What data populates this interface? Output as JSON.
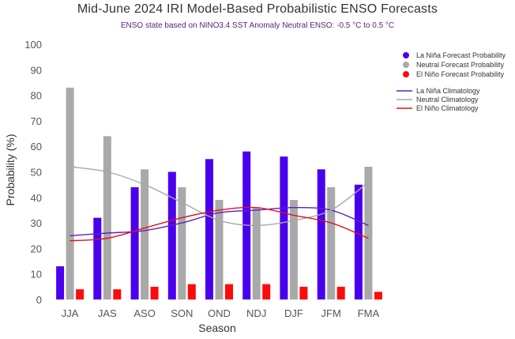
{
  "title": "Mid-June 2024 IRI Model-Based Probabilistic ENSO Forecasts",
  "subtitle": "ENSO state based on NINO3.4 SST Anomaly Neutral ENSO: -0.5 °C to 0.5 °C",
  "colors": {
    "la_nina_bar": "#4a00ee",
    "neutral_bar": "#a9a9a9",
    "el_nino_bar": "#ff0a0a",
    "la_nina_line": "#5d1fc8",
    "neutral_line": "#a9a9a9",
    "el_nino_line": "#dd1616"
  },
  "chart_data": {
    "type": "bar",
    "title": "Mid-June 2024 IRI Model-Based Probabilistic ENSO Forecasts",
    "xlabel": "Season",
    "ylabel": "Probability (%)",
    "ylim": [
      0,
      100
    ],
    "yticks": [
      0,
      10,
      20,
      30,
      40,
      50,
      60,
      70,
      80,
      90,
      100
    ],
    "grid": false,
    "legend_position": "right",
    "categories": [
      "JJA",
      "JAS",
      "ASO",
      "SON",
      "OND",
      "NDJ",
      "DJF",
      "JFM",
      "FMA"
    ],
    "series": [
      {
        "name": "La Niña Forecast Probability",
        "kind": "bar",
        "values": [
          13,
          32,
          44,
          50,
          55,
          58,
          56,
          51,
          45
        ]
      },
      {
        "name": "Neutral Forecast Probability",
        "kind": "bar",
        "values": [
          83,
          64,
          51,
          44,
          39,
          36,
          39,
          44,
          52
        ]
      },
      {
        "name": "El Niño Forecast Probability",
        "kind": "bar",
        "values": [
          4,
          4,
          5,
          6,
          6,
          6,
          5,
          5,
          3
        ]
      },
      {
        "name": "La Niña Climatology",
        "kind": "line",
        "values": [
          25,
          26,
          27,
          30,
          34,
          35,
          36,
          35,
          29
        ]
      },
      {
        "name": "Neutral Climatology",
        "kind": "line",
        "values": [
          52,
          50,
          45,
          38,
          31,
          29,
          31,
          35,
          46
        ]
      },
      {
        "name": "El Niño Climatology",
        "kind": "line",
        "values": [
          23,
          24,
          28,
          32,
          35,
          36,
          33,
          30,
          24
        ]
      }
    ]
  }
}
